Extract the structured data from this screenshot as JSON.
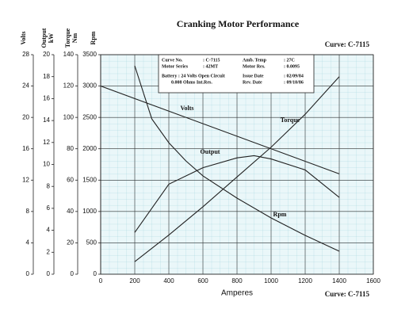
{
  "chart_data": {
    "type": "line",
    "title": "Cranking Motor Performance",
    "curve_labels": [
      "Curve: C-7115",
      "Curve: C-7115"
    ],
    "x_label": "Amperes",
    "xlim": [
      0,
      1600
    ],
    "xticks": [
      0,
      200,
      400,
      600,
      800,
      1000,
      1200,
      1400,
      1600
    ],
    "y_label": "Rpm",
    "ylim": [
      0,
      3500
    ],
    "yticks": [
      0,
      500,
      1000,
      1500,
      2000,
      2500,
      3000,
      3500
    ],
    "y2_label": "Volts",
    "y2lim": [
      0,
      28
    ],
    "y2ticks": [
      0,
      4,
      8,
      12,
      16,
      20,
      24,
      28
    ],
    "y3_label": [
      "Output",
      "kW"
    ],
    "y3lim": [
      0,
      20
    ],
    "y3ticks": [
      0,
      2,
      4,
      6,
      8,
      10,
      12,
      14,
      16,
      18,
      20
    ],
    "y4_label": [
      "Torque",
      "Nm"
    ],
    "y4lim": [
      0,
      140
    ],
    "y4ticks": [
      0,
      20,
      40,
      60,
      80,
      100,
      120,
      140
    ],
    "grid": true,
    "series": [
      {
        "name": "Volts",
        "color": "#222222",
        "axis": "y2",
        "x": [
          0,
          1400
        ],
        "values": [
          24,
          12.8
        ]
      },
      {
        "name": "Torque",
        "color": "#222222",
        "axis": "y4",
        "x": [
          200,
          400,
          600,
          800,
          1000,
          1200,
          1400
        ],
        "values": [
          8,
          25,
          43,
          62,
          81,
          102,
          126
        ]
      },
      {
        "name": "Output",
        "color": "#222222",
        "axis": "y3",
        "x": [
          200,
          400,
          600,
          800,
          900,
          1000,
          1200,
          1400
        ],
        "values": [
          3.8,
          8.2,
          9.7,
          10.6,
          10.8,
          10.5,
          9.5,
          7.0
        ]
      },
      {
        "name": "Rpm",
        "color": "#222222",
        "axis": "y",
        "x": [
          200,
          300,
          400,
          500,
          600,
          800,
          1000,
          1200,
          1400
        ],
        "values": [
          3323,
          2477,
          2096,
          1807,
          1568,
          1213,
          897,
          619,
          366
        ]
      }
    ],
    "info": [
      "Curve No.",
      ": C-7115",
      "Amb. Temp",
      ": 27C",
      "Motor Series",
      ": 42MT",
      "Motor Res.",
      ": 0.0095",
      "Battery : 24 Volts Open Circuit",
      "0.008 Ohms Int.Res.",
      "Issue Date",
      ": 02/09/84",
      "Rev. Date",
      ": 09/10/86"
    ]
  }
}
